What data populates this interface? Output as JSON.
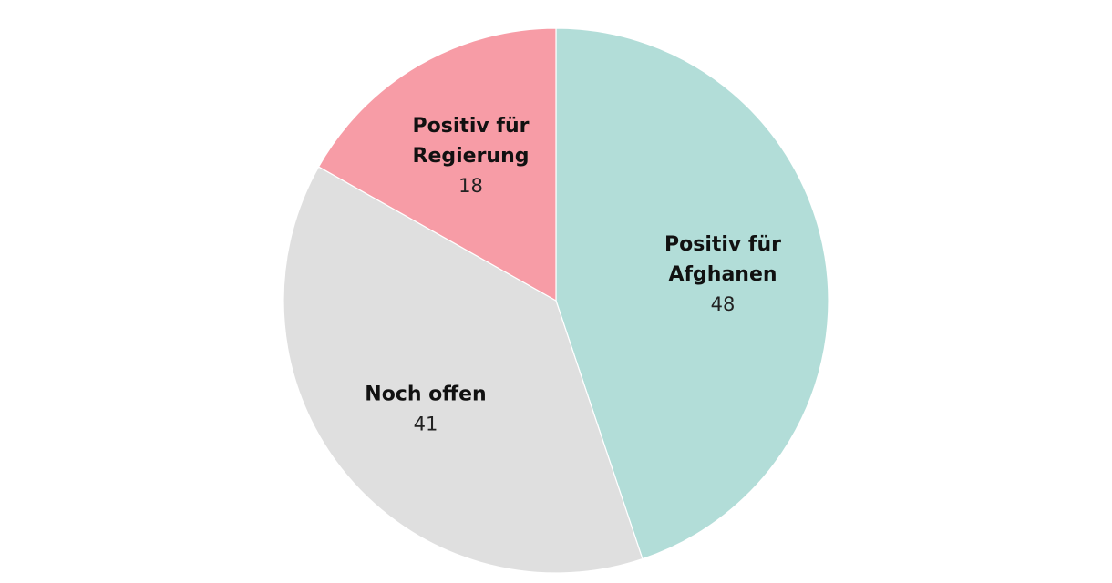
{
  "chart_data": {
    "type": "pie",
    "title": "",
    "start": "12 o'clock",
    "direction": "clockwise",
    "slices": [
      {
        "label_lines": [
          "Positiv für",
          "Afghanen"
        ],
        "value": 48,
        "color": "#b2ddd8"
      },
      {
        "label_lines": [
          "Noch offen"
        ],
        "value": 41,
        "color": "#dfdfdf"
      },
      {
        "label_lines": [
          "Positiv für",
          "Regierung"
        ],
        "value": 18,
        "color": "#f79ca6"
      }
    ]
  }
}
